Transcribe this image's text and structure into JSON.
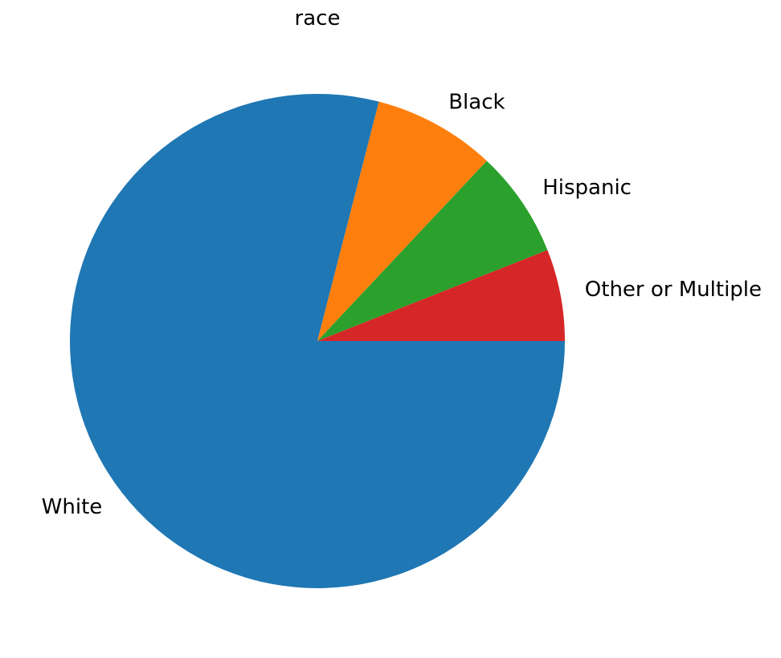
{
  "chart_data": {
    "type": "pie",
    "title": "race",
    "start_angle_deg": 0,
    "direction": "clockwise",
    "labels_outside": true,
    "slices": [
      {
        "label": "White",
        "value": 79,
        "color": "#1f77b4"
      },
      {
        "label": "Black",
        "value": 8,
        "color": "#ff7f0e"
      },
      {
        "label": "Hispanic",
        "value": 7,
        "color": "#2ca02c"
      },
      {
        "label": "Other or Multiple",
        "value": 6,
        "color": "#d62728"
      }
    ]
  }
}
